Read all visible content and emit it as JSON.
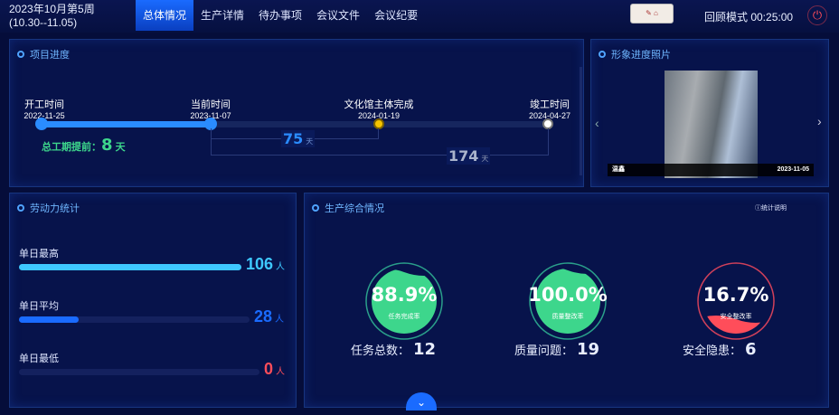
{
  "header": {
    "week": "2023年10月第5周",
    "range": "(10.30--11.05)",
    "tabs": [
      "总体情况",
      "生产详情",
      "待办事项",
      "会议文件",
      "会议纪要"
    ],
    "active_tab": 0,
    "mode": "回顾模式 00:25:00",
    "power_icon": "power-icon"
  },
  "progress": {
    "title": "项目进度",
    "milestones": [
      {
        "label": "开工时间",
        "date": "2022-11-25"
      },
      {
        "label": "当前时间",
        "date": "2023-11-07"
      },
      {
        "label": "文化馆主体完成",
        "date": "2024-01-19"
      },
      {
        "label": "竣工时间",
        "date": "2024-04-27"
      }
    ],
    "ahead_label": "总工期提前：",
    "ahead_value": "8",
    "ahead_unit": "天",
    "to_milestone": "75",
    "to_end": "174",
    "day_unit": "天",
    "elapsed_fraction": 0.33,
    "colors": {
      "done": "#2a8cff",
      "milestone": "#f5c400",
      "end": "#ffffff"
    }
  },
  "photo": {
    "title": "形象进度照片",
    "caption_left": "温鑫",
    "caption_date": "2023-11-05"
  },
  "labor": {
    "title": "劳动力统计",
    "unit": "人",
    "rows": [
      {
        "label": "单日最高",
        "value": "106",
        "fraction": 1.0,
        "color": "#3ec8ff"
      },
      {
        "label": "单日平均",
        "value": "28",
        "fraction": 0.26,
        "color": "#1a6bff"
      },
      {
        "label": "单日最低",
        "value": "0",
        "fraction": 0,
        "color": "#ff4d5a"
      }
    ]
  },
  "production": {
    "title": "生产综合情况",
    "note": "统计说明",
    "gauges": [
      {
        "pct": 88.9,
        "text": "88.9%",
        "label": "任务完成率",
        "color": "#3dd68c",
        "ring": "#2a9f8a"
      },
      {
        "pct": 100,
        "text": "100.0%",
        "label": "质量整改率",
        "color": "#3dd68c",
        "ring": "#2a9f8a"
      },
      {
        "pct": 16.7,
        "text": "16.7%",
        "label": "安全整改率",
        "color": "#ff4d5a",
        "ring": "#d0405a"
      }
    ],
    "stats": [
      {
        "label": "任务总数：",
        "value": "12"
      },
      {
        "label": "质量问题：",
        "value": "19"
      },
      {
        "label": "安全隐患：",
        "value": "6"
      }
    ]
  }
}
